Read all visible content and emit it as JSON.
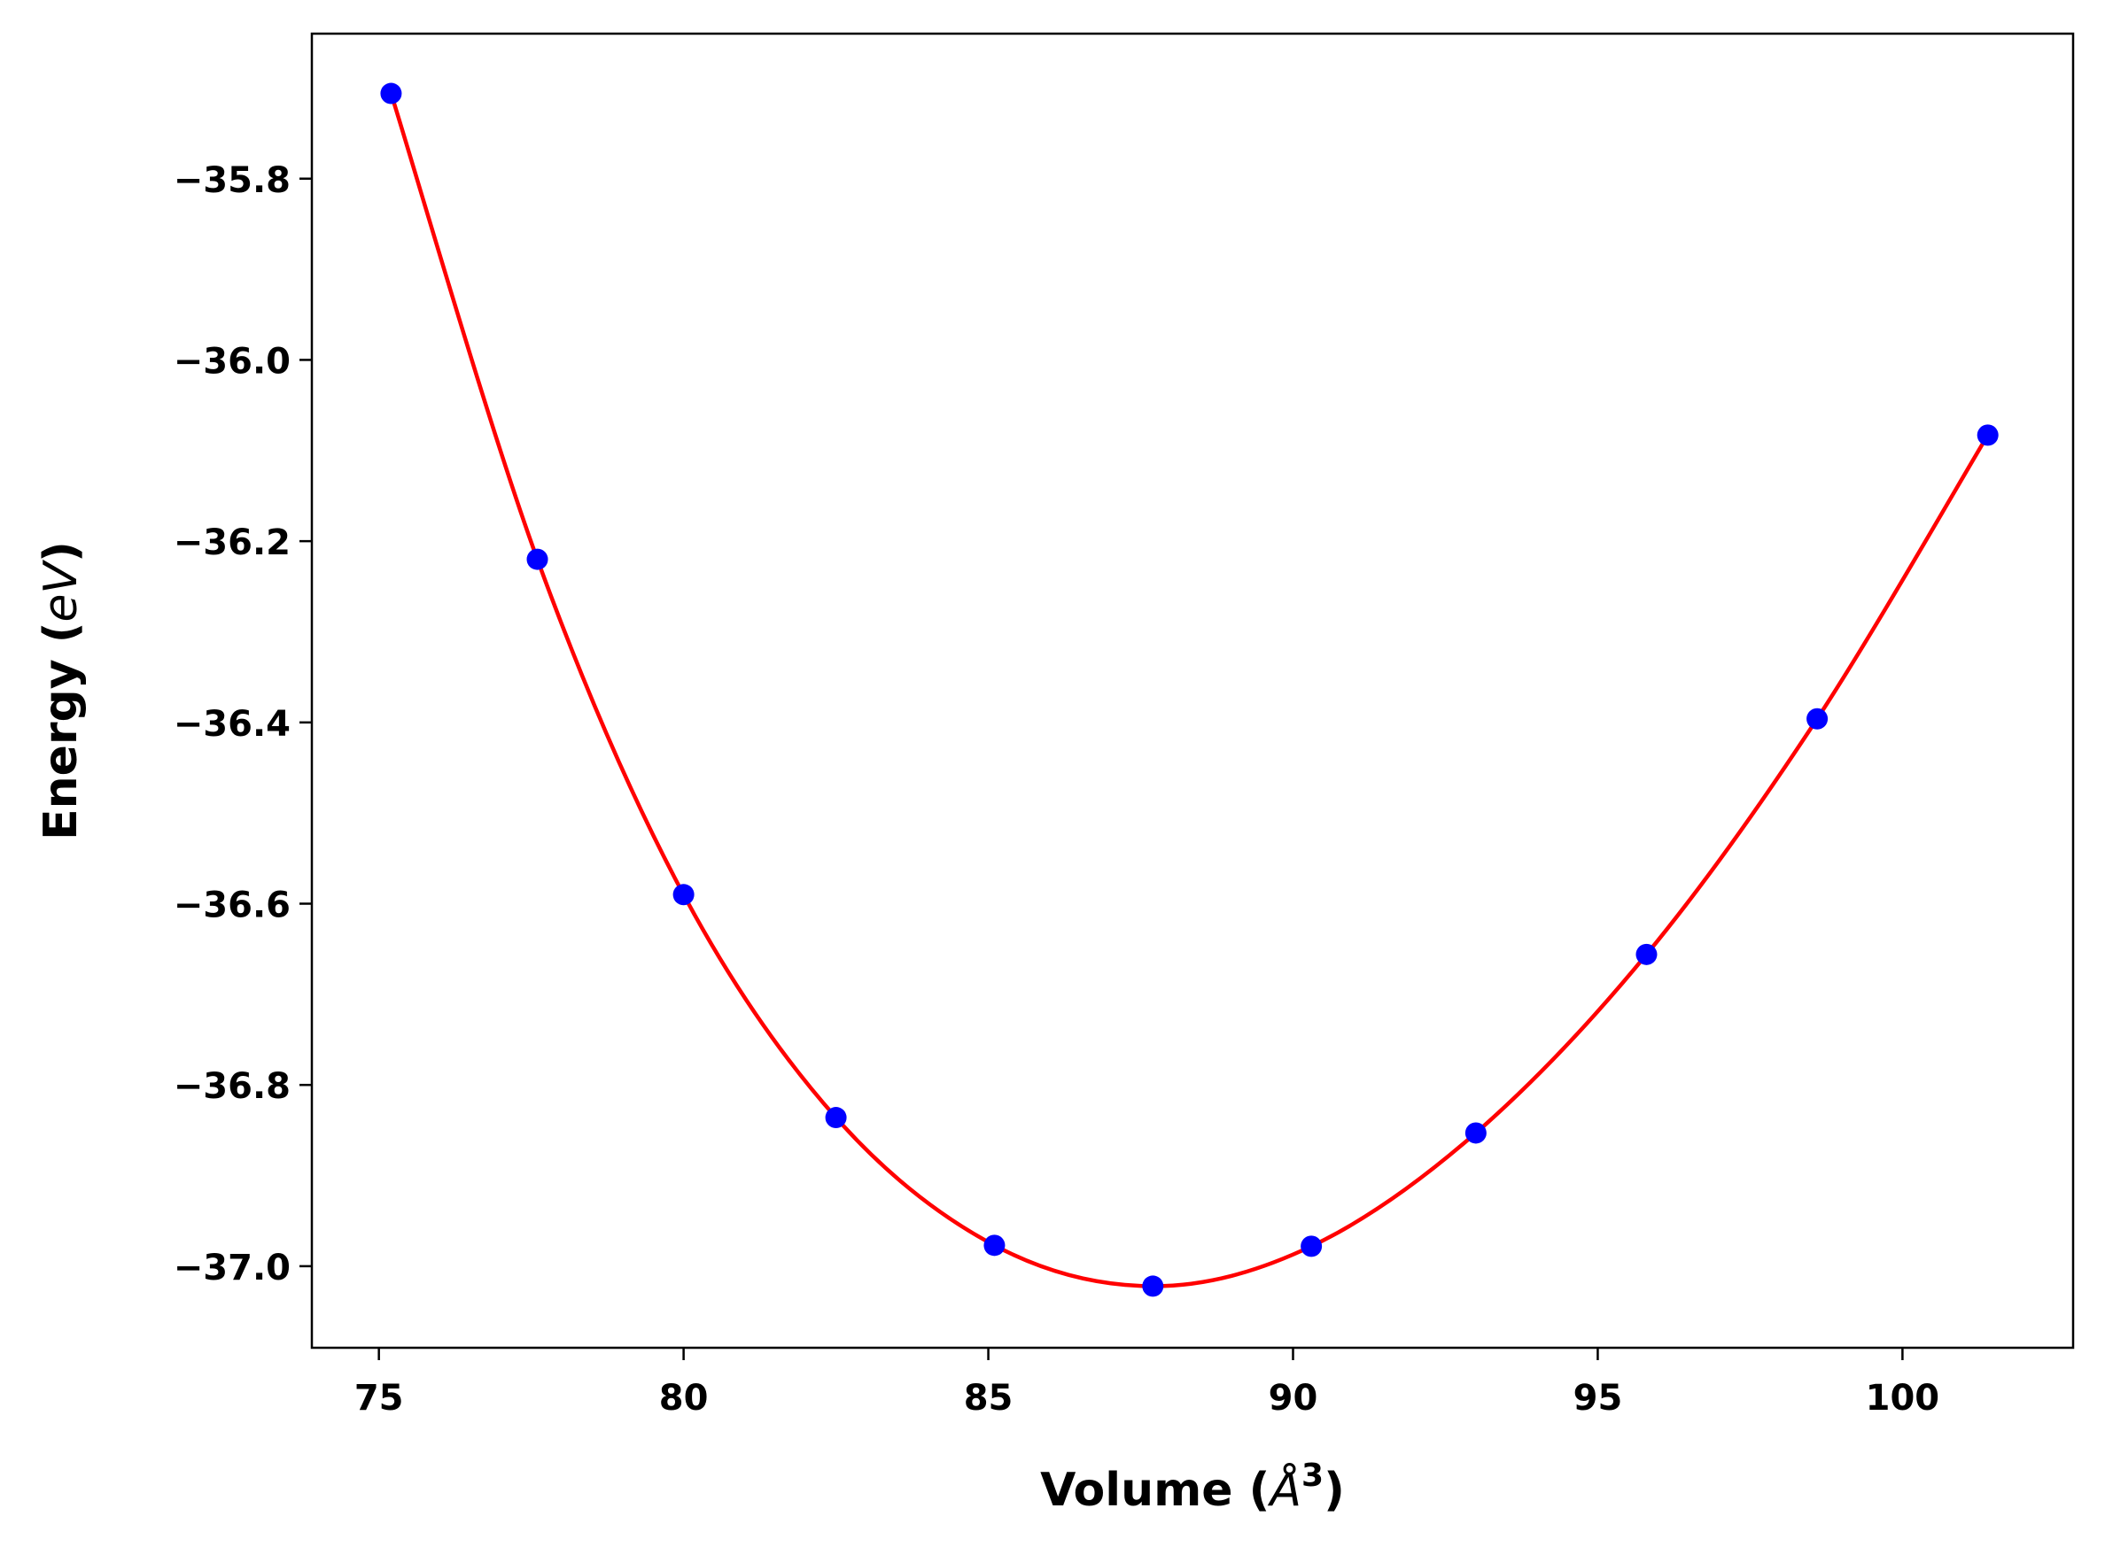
{
  "chart_data": {
    "type": "line",
    "title": "",
    "xlabel_prefix": "Volume (",
    "xlabel_math": "Å",
    "xlabel_sup": "3",
    "xlabel_suffix": ")",
    "ylabel_prefix": "Energy (",
    "ylabel_math": "eV",
    "ylabel_suffix": ")",
    "xlim": [
      73.9,
      102.8
    ],
    "ylim": [
      -37.09,
      -35.64
    ],
    "xticks": [
      75,
      80,
      85,
      90,
      95,
      100
    ],
    "xtick_labels": [
      "75",
      "80",
      "85",
      "90",
      "95",
      "100"
    ],
    "yticks": [
      -35.8,
      -36.0,
      -36.2,
      -36.4,
      -36.6,
      -36.8,
      -37.0
    ],
    "ytick_labels": [
      "−35.8",
      "−36.0",
      "−36.2",
      "−36.4",
      "−36.6",
      "−36.8",
      "−37.0"
    ],
    "grid": false,
    "series": [
      {
        "kind": "scatter",
        "color": "#0000ff",
        "x": [
          75.2,
          77.6,
          80.0,
          82.5,
          85.1,
          87.7,
          90.3,
          93.0,
          95.8,
          98.6,
          101.4
        ],
        "y": [
          -35.706,
          -36.22,
          -36.59,
          -36.836,
          -36.977,
          -37.022,
          -36.978,
          -36.853,
          -36.656,
          -36.396,
          -36.083
        ]
      },
      {
        "kind": "line",
        "color": "#ff0000",
        "x": [
          75.2,
          77.6,
          80.0,
          82.5,
          85.1,
          87.7,
          90.3,
          93.0,
          95.8,
          98.6,
          101.4
        ],
        "y": [
          -35.706,
          -36.22,
          -36.59,
          -36.836,
          -36.977,
          -37.022,
          -36.978,
          -36.853,
          -36.656,
          -36.396,
          -36.083
        ]
      }
    ]
  }
}
